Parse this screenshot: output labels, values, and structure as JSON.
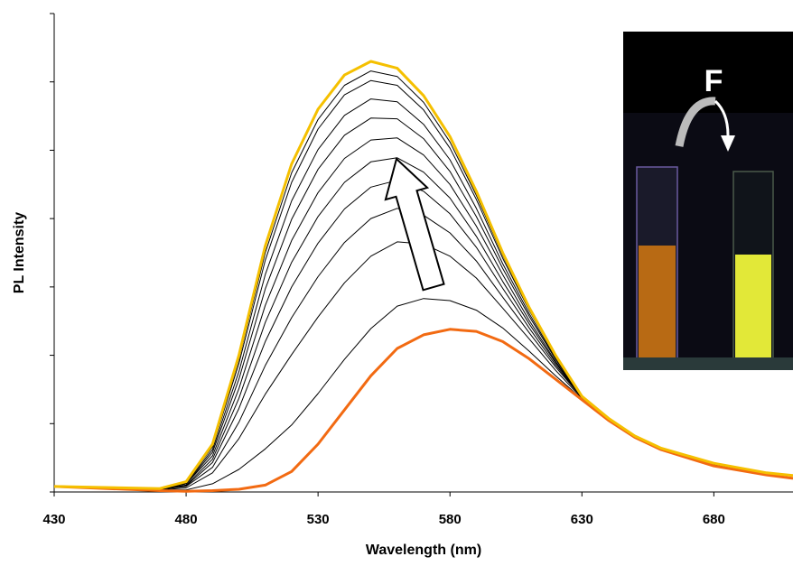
{
  "chart_data": {
    "type": "line",
    "xlabel": "Wavelength (nm)",
    "ylabel": "PL Intensity",
    "inset_label": "F",
    "x": [
      430,
      470,
      480,
      490,
      500,
      510,
      520,
      530,
      540,
      550,
      560,
      570,
      580,
      590,
      600,
      610,
      620,
      630,
      640,
      650,
      660,
      680,
      700,
      710
    ],
    "xlim": [
      430,
      710
    ],
    "xticks": [
      430,
      480,
      530,
      580,
      630,
      680
    ],
    "ylim": [
      0,
      7
    ],
    "yticks": [
      0,
      1,
      2,
      3,
      4,
      5,
      6,
      7
    ],
    "series": [
      {
        "color": "#000000",
        "values": [
          0.08,
          0.03,
          0.03,
          0.12,
          0.33,
          0.63,
          0.98,
          1.44,
          1.94,
          2.39,
          2.72,
          2.83,
          2.8,
          2.66,
          2.4,
          2.06,
          1.7,
          1.36,
          1.05,
          0.8,
          0.62,
          0.4,
          0.25,
          0.2
        ]
      },
      {
        "color": "#000000",
        "values": [
          0.08,
          0.03,
          0.06,
          0.28,
          0.78,
          1.43,
          2.01,
          2.56,
          3.06,
          3.45,
          3.66,
          3.63,
          3.45,
          3.13,
          2.69,
          2.24,
          1.78,
          1.37,
          1.05,
          0.8,
          0.62,
          0.4,
          0.25,
          0.2
        ]
      },
      {
        "color": "#000000",
        "values": [
          0.08,
          0.04,
          0.08,
          0.36,
          1.02,
          1.85,
          2.55,
          3.15,
          3.65,
          4.0,
          4.15,
          4.05,
          3.79,
          3.38,
          2.85,
          2.33,
          1.83,
          1.38,
          1.05,
          0.8,
          0.62,
          0.4,
          0.25,
          0.2
        ]
      },
      {
        "color": "#000000",
        "values": [
          0.08,
          0.04,
          0.09,
          0.43,
          1.22,
          2.2,
          3.0,
          3.64,
          4.14,
          4.46,
          4.56,
          4.4,
          4.07,
          3.58,
          2.98,
          2.4,
          1.86,
          1.38,
          1.05,
          0.8,
          0.62,
          0.4,
          0.25,
          0.2
        ]
      },
      {
        "color": "#000000",
        "values": [
          0.08,
          0.04,
          0.1,
          0.48,
          1.37,
          2.48,
          3.36,
          4.03,
          4.53,
          4.83,
          4.89,
          4.68,
          4.3,
          3.74,
          3.08,
          2.46,
          1.89,
          1.38,
          1.05,
          0.8,
          0.62,
          0.4,
          0.25,
          0.2
        ]
      },
      {
        "color": "#000000",
        "values": [
          0.08,
          0.04,
          0.12,
          0.53,
          1.51,
          2.73,
          3.68,
          4.38,
          4.88,
          5.15,
          5.18,
          4.93,
          4.5,
          3.89,
          3.18,
          2.51,
          1.91,
          1.39,
          1.05,
          0.8,
          0.62,
          0.4,
          0.25,
          0.2
        ]
      },
      {
        "color": "#000000",
        "values": [
          0.08,
          0.04,
          0.12,
          0.58,
          1.65,
          2.97,
          3.99,
          4.72,
          5.22,
          5.47,
          5.46,
          5.17,
          4.69,
          4.03,
          3.27,
          2.57,
          1.94,
          1.39,
          1.05,
          0.8,
          0.62,
          0.4,
          0.25,
          0.2
        ]
      },
      {
        "color": "#000000",
        "values": [
          0.08,
          0.05,
          0.13,
          0.62,
          1.76,
          3.18,
          4.26,
          5.01,
          5.51,
          5.75,
          5.71,
          5.38,
          4.86,
          4.15,
          3.34,
          2.61,
          1.96,
          1.39,
          1.05,
          0.8,
          0.62,
          0.4,
          0.25,
          0.2
        ]
      },
      {
        "color": "#000000",
        "values": [
          0.08,
          0.05,
          0.14,
          0.66,
          1.88,
          3.39,
          4.53,
          5.31,
          5.81,
          6.02,
          5.95,
          5.59,
          5.03,
          4.28,
          3.42,
          2.66,
          1.98,
          1.4,
          1.05,
          0.8,
          0.62,
          0.4,
          0.25,
          0.2
        ]
      },
      {
        "color": "#000000",
        "values": [
          0.08,
          0.05,
          0.15,
          0.68,
          1.94,
          3.5,
          4.67,
          5.45,
          5.95,
          6.16,
          6.08,
          5.7,
          5.12,
          4.34,
          3.46,
          2.68,
          1.99,
          1.4,
          1.05,
          0.8,
          0.62,
          0.4,
          0.25,
          0.2
        ]
      },
      {
        "color": "#f26a12",
        "values": [
          0.08,
          0.02,
          0.01,
          0.02,
          0.04,
          0.1,
          0.3,
          0.7,
          1.2,
          1.7,
          2.1,
          2.3,
          2.38,
          2.35,
          2.2,
          1.95,
          1.65,
          1.35,
          1.05,
          0.8,
          0.62,
          0.38,
          0.25,
          0.2
        ]
      },
      {
        "color": "#f5c000",
        "values": [
          0.08,
          0.05,
          0.15,
          0.7,
          2.0,
          3.6,
          4.8,
          5.6,
          6.1,
          6.3,
          6.2,
          5.8,
          5.2,
          4.4,
          3.5,
          2.7,
          2.0,
          1.4,
          1.08,
          0.82,
          0.64,
          0.42,
          0.28,
          0.24
        ]
      }
    ]
  }
}
